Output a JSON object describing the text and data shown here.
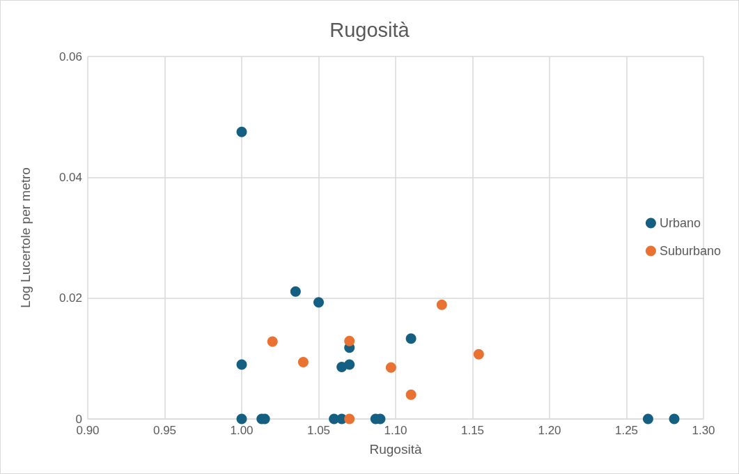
{
  "chart_data": {
    "type": "scatter",
    "title": "Rugosità",
    "xlabel": "Rugosità",
    "ylabel": "Log Lucertole per metro",
    "xlim": [
      0.9,
      1.3
    ],
    "xticks": [
      {
        "value": 0.9,
        "label": "0.90"
      },
      {
        "value": 0.95,
        "label": "0.95"
      },
      {
        "value": 1.0,
        "label": "1.00"
      },
      {
        "value": 1.05,
        "label": "1.05"
      },
      {
        "value": 1.1,
        "label": "1.10"
      },
      {
        "value": 1.15,
        "label": "1.15"
      },
      {
        "value": 1.2,
        "label": "1.20"
      },
      {
        "value": 1.25,
        "label": "1.25"
      },
      {
        "value": 1.3,
        "label": "1.30"
      }
    ],
    "ylim": [
      0,
      0.06
    ],
    "yticks": [
      0,
      0.02,
      0.04,
      0.06
    ],
    "grid": true,
    "legend": "right",
    "marker": "circle",
    "series": [
      {
        "name": "Urbano",
        "color": "#156082",
        "x": [
          1.0,
          1.0,
          1.0,
          1.013,
          1.015,
          1.035,
          1.05,
          1.06,
          1.065,
          1.065,
          1.07,
          1.07,
          1.087,
          1.09,
          1.11,
          1.264,
          1.281
        ],
        "values": [
          0.0475,
          0.009,
          0,
          0,
          0,
          0.0211,
          0.0193,
          0,
          0,
          0.0086,
          0.0118,
          0.009,
          0,
          0,
          0.0133,
          0,
          0
        ]
      },
      {
        "name": "Suburbano",
        "color": "#e97132",
        "x": [
          1.02,
          1.04,
          1.07,
          1.07,
          1.097,
          1.11,
          1.13,
          1.154
        ],
        "values": [
          0.0128,
          0.0094,
          0.0129,
          0,
          0.0085,
          0.004,
          0.0189,
          0.0107
        ]
      }
    ]
  }
}
